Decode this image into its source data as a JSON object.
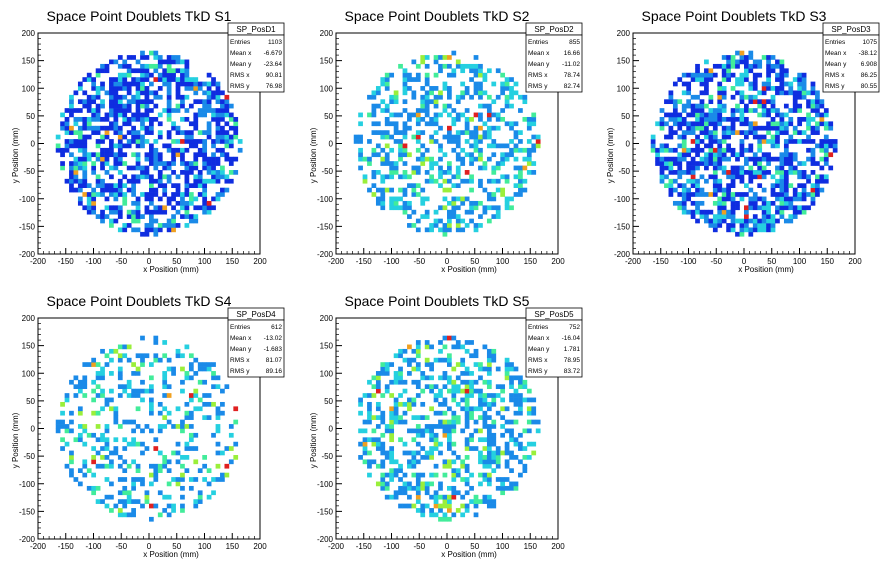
{
  "chart_data": [
    {
      "type": "heatmap",
      "title": "Space Point Doublets TkD S1",
      "xlabel": "x Position (mm)",
      "ylabel": "y Position (mm)",
      "xlim": [
        -200,
        200
      ],
      "ylim": [
        -200,
        200
      ],
      "ticks": [
        -200,
        -150,
        -100,
        -50,
        0,
        50,
        100,
        150,
        200
      ],
      "stats": {
        "name": "SP_PosD1",
        "rows": [
          [
            "Entries",
            "1103"
          ],
          [
            "Mean x",
            "-6.679"
          ],
          [
            "Mean y",
            "-23.64"
          ],
          [
            "RMS x",
            "90.81"
          ],
          [
            "RMS y",
            "76.98"
          ]
        ]
      },
      "bin_width_mm": 8,
      "fill_level": "dense",
      "colors": [
        "#0f2de0",
        "#1a8ae8",
        "#25d0e0",
        "#42ec9a"
      ],
      "hot_colors": [
        "#f0a020",
        "#e02020"
      ]
    },
    {
      "type": "heatmap",
      "title": "Space Point Doublets TkD S2",
      "xlabel": "x Position (mm)",
      "ylabel": "y Position (mm)",
      "xlim": [
        -200,
        200
      ],
      "ylim": [
        -200,
        200
      ],
      "ticks": [
        -200,
        -150,
        -100,
        -50,
        0,
        50,
        100,
        150,
        200
      ],
      "stats": {
        "name": "SP_PosD2",
        "rows": [
          [
            "Entries",
            "855"
          ],
          [
            "Mean x",
            "16.66"
          ],
          [
            "Mean y",
            "-11.02"
          ],
          [
            "RMS x",
            "78.74"
          ],
          [
            "RMS y",
            "82.74"
          ]
        ]
      },
      "bin_width_mm": 8,
      "fill_level": "medium",
      "colors": [
        "#1a8ae8",
        "#25d0e0",
        "#42ec9a",
        "#9aef3a"
      ],
      "hot_colors": [
        "#f0a020",
        "#e02020"
      ]
    },
    {
      "type": "heatmap",
      "title": "Space Point Doublets TkD S3",
      "xlabel": "x Position (mm)",
      "ylabel": "y Position (mm)",
      "xlim": [
        -200,
        200
      ],
      "ylim": [
        -200,
        200
      ],
      "ticks": [
        -200,
        -150,
        -100,
        -50,
        0,
        50,
        100,
        150,
        200
      ],
      "stats": {
        "name": "SP_PosD3",
        "rows": [
          [
            "Entries",
            "1075"
          ],
          [
            "Mean x",
            "-38.12"
          ],
          [
            "Mean y",
            "6.908"
          ],
          [
            "RMS x",
            "86.25"
          ],
          [
            "RMS y",
            "80.55"
          ]
        ]
      },
      "bin_width_mm": 8,
      "fill_level": "dense",
      "colors": [
        "#0f2de0",
        "#1a8ae8",
        "#25d0e0",
        "#42ec9a"
      ],
      "hot_colors": [
        "#f0a020",
        "#e02020"
      ]
    },
    {
      "type": "heatmap",
      "title": "Space Point Doublets TkD S4",
      "xlabel": "x Position (mm)",
      "ylabel": "y Position (mm)",
      "xlim": [
        -200,
        200
      ],
      "ylim": [
        -200,
        200
      ],
      "ticks": [
        -200,
        -150,
        -100,
        -50,
        0,
        50,
        100,
        150,
        200
      ],
      "stats": {
        "name": "SP_PosD4",
        "rows": [
          [
            "Entries",
            "612"
          ],
          [
            "Mean x",
            "-13.02"
          ],
          [
            "Mean y",
            "-1.683"
          ],
          [
            "RMS x",
            "81.07"
          ],
          [
            "RMS y",
            "89.16"
          ]
        ]
      },
      "bin_width_mm": 8,
      "fill_level": "sparse",
      "colors": [
        "#1a8ae8",
        "#25d0e0",
        "#42ec9a",
        "#9aef3a"
      ],
      "hot_colors": [
        "#f0a020",
        "#e02020"
      ]
    },
    {
      "type": "heatmap",
      "title": "Space Point Doublets TkD S5",
      "xlabel": "x Position (mm)",
      "ylabel": "y Position (mm)",
      "xlim": [
        -200,
        200
      ],
      "ylim": [
        -200,
        200
      ],
      "ticks": [
        -200,
        -150,
        -100,
        -50,
        0,
        50,
        100,
        150,
        200
      ],
      "stats": {
        "name": "SP_PosD5",
        "rows": [
          [
            "Entries",
            "752"
          ],
          [
            "Mean x",
            "-16.04"
          ],
          [
            "Mean y",
            "1.781"
          ],
          [
            "RMS x",
            "78.95"
          ],
          [
            "RMS y",
            "83.72"
          ]
        ]
      },
      "bin_width_mm": 8,
      "fill_level": "medium",
      "colors": [
        "#1a8ae8",
        "#25d0e0",
        "#42ec9a",
        "#9aef3a"
      ],
      "hot_colors": [
        "#f0a020",
        "#e02020"
      ]
    }
  ]
}
